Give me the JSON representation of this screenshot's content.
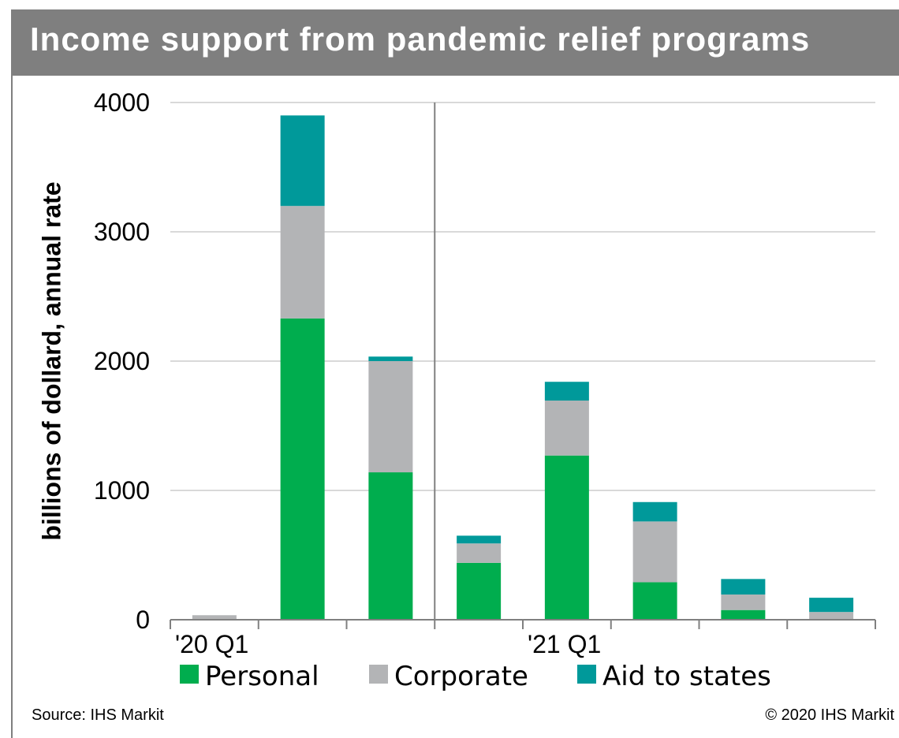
{
  "title": "Income support  from pandemic relief programs",
  "source": "Source:  IHS Markit",
  "copyright": "© 2020  IHS Markit",
  "chart_data": {
    "type": "bar",
    "stacked": true,
    "title": "Income support  from pandemic relief programs",
    "ylabel": "billions of dollard, annual rate",
    "xlabel": "",
    "ylim": [
      0,
      4000
    ],
    "yticks": [
      0,
      1000,
      2000,
      3000,
      4000
    ],
    "grid": true,
    "legend": "bottom",
    "categories": [
      "'20 Q1",
      "",
      "",
      "",
      "'21 Q1",
      "",
      "",
      ""
    ],
    "series": [
      {
        "name": "Personal",
        "color": "#00ad4e",
        "values": [
          0,
          2330,
          1140,
          440,
          1270,
          290,
          75,
          0
        ]
      },
      {
        "name": "Corporate",
        "color": "#b3b4b6",
        "values": [
          35,
          870,
          860,
          150,
          425,
          470,
          120,
          60
        ]
      },
      {
        "name": "Aid to states",
        "color": "#00999a",
        "values": [
          0,
          700,
          35,
          60,
          145,
          150,
          120,
          110
        ]
      }
    ]
  }
}
